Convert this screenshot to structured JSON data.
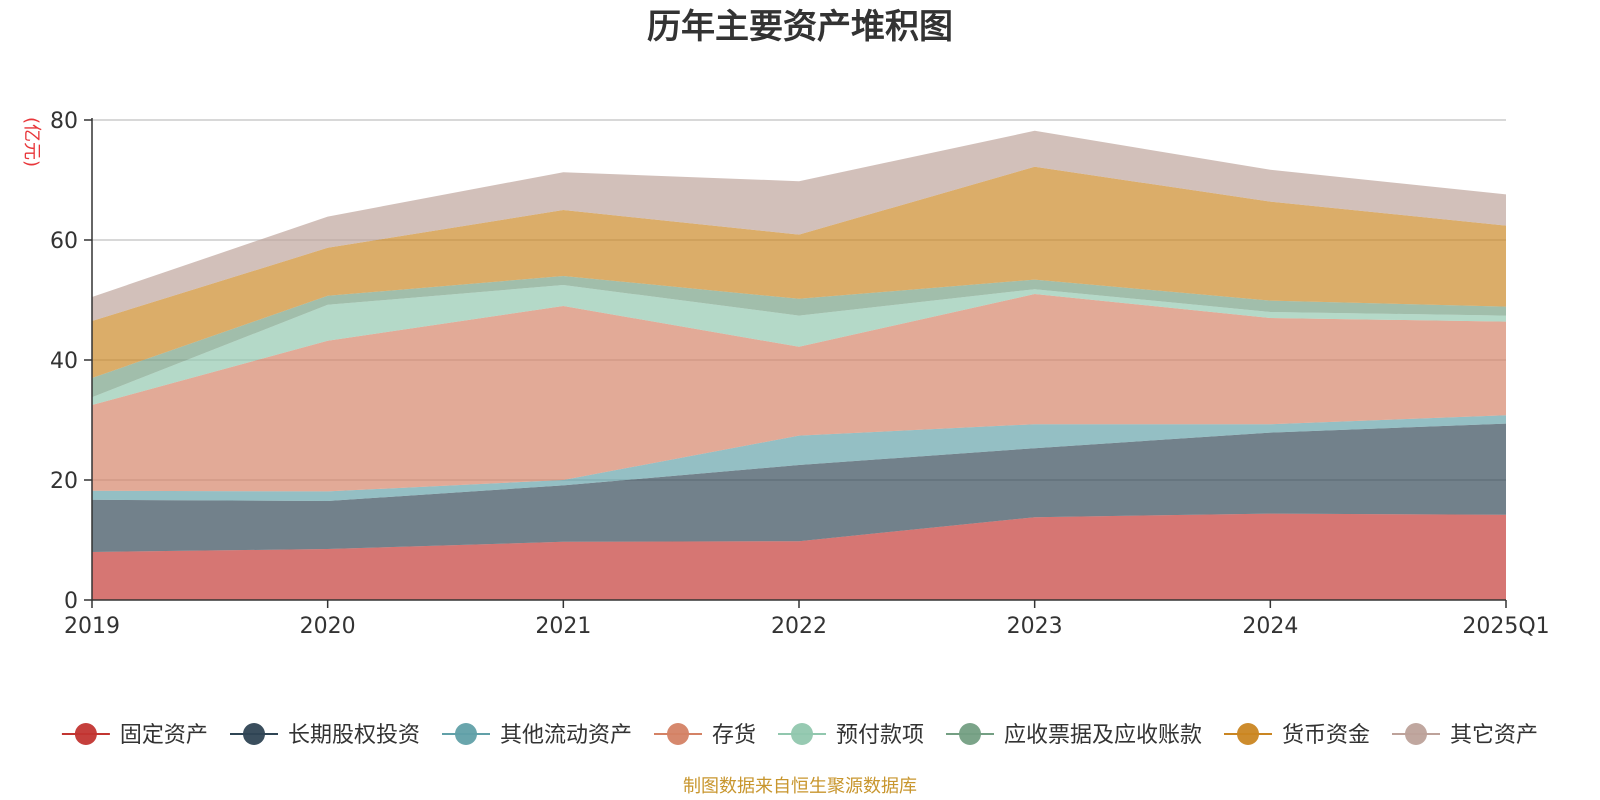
{
  "chart_data": {
    "type": "area",
    "stacked": true,
    "title": "历年主要资产堆积图",
    "ylabel": "(亿元)",
    "xlabel": "",
    "ylim": [
      0,
      80
    ],
    "yticks": [
      0,
      20,
      40,
      60,
      80
    ],
    "categories": [
      "2019",
      "2020",
      "2021",
      "2022",
      "2023",
      "2024",
      "2025Q1"
    ],
    "grid": true,
    "legend_position": "bottom",
    "series": [
      {
        "name": "固定资产",
        "color": "#c23531",
        "values": [
          8.0,
          8.5,
          9.7,
          9.8,
          13.8,
          14.4,
          14.2
        ]
      },
      {
        "name": "长期股权投资",
        "color": "#2f4554",
        "values": [
          8.7,
          8.0,
          9.4,
          12.7,
          11.5,
          13.5,
          15.2
        ]
      },
      {
        "name": "其他流动资产",
        "color": "#61a0a8",
        "values": [
          1.5,
          1.6,
          0.9,
          4.9,
          4.0,
          1.4,
          1.4
        ]
      },
      {
        "name": "存货",
        "color": "#d48265",
        "values": [
          14.3,
          25.1,
          29.0,
          14.8,
          21.7,
          17.7,
          15.6
        ]
      },
      {
        "name": "预付款项",
        "color": "#91c7ae",
        "values": [
          1.3,
          6.0,
          3.5,
          5.2,
          0.8,
          1.0,
          1.0
        ]
      },
      {
        "name": "应收票据及应收账款",
        "color": "#749f83",
        "values": [
          3.2,
          1.5,
          1.5,
          2.8,
          1.6,
          1.9,
          1.5
        ]
      },
      {
        "name": "货币资金",
        "color": "#ca8622",
        "values": [
          9.5,
          8.0,
          11.0,
          10.7,
          18.8,
          16.5,
          13.5
        ]
      },
      {
        "name": "其它资产",
        "color": "#bda29a",
        "values": [
          4.0,
          5.2,
          6.3,
          8.9,
          6.0,
          5.3,
          5.2
        ]
      }
    ]
  },
  "footer_text": "制图数据来自恒生聚源数据库"
}
